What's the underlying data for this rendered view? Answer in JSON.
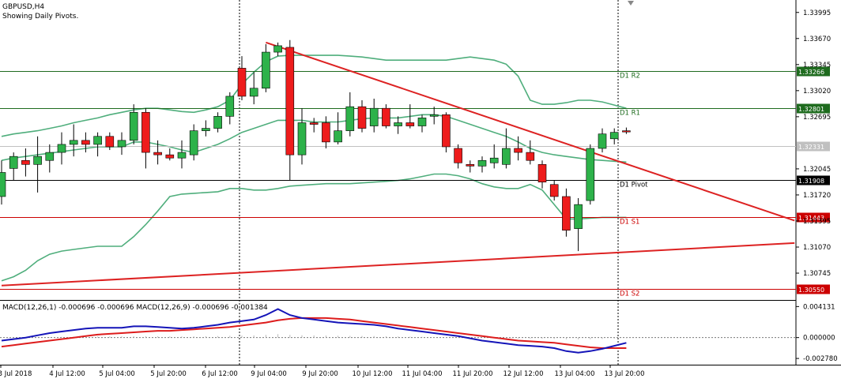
{
  "header": {
    "symbol": "GBPUSD,H4",
    "subtitle": "Showing Daily Pivots."
  },
  "colors": {
    "bull": "#2db24a",
    "bear": "#ee1c1c",
    "bollinger": "#4fae7c",
    "trendline": "#dd2222",
    "pivot_line": "#000000",
    "resistance": "#1e6b1e",
    "support": "#cc0000",
    "macd_main": "#1414b8",
    "macd_signal": "#dd1c1c",
    "axis": "#000000"
  },
  "chart_data": [
    {
      "type": "candlestick",
      "title": "GBPUSD,H4",
      "ylim": [
        1.3045,
        1.3415
      ],
      "y_ticks": [
        "1.33995",
        "1.33670",
        "1.33345",
        "1.33020",
        "1.32695",
        "1.32045",
        "1.31720",
        "1.31395",
        "1.31070",
        "1.30745"
      ],
      "x_labels": [
        "3 Jul 2018",
        "4 Jul 12:00",
        "5 Jul 04:00",
        "5 Jul 20:00",
        "6 Jul 12:00",
        "9 Jul 04:00",
        "9 Jul 20:00",
        "10 Jul 12:00",
        "11 Jul 04:00",
        "11 Jul 20:00",
        "12 Jul 12:00",
        "13 Jul 04:00",
        "13 Jul 20:00"
      ],
      "candles": [
        {
          "o": 1.317,
          "h": 1.3215,
          "l": 1.316,
          "c": 1.32
        },
        {
          "o": 1.3205,
          "h": 1.3225,
          "l": 1.319,
          "c": 1.322
        },
        {
          "o": 1.3215,
          "h": 1.323,
          "l": 1.3195,
          "c": 1.321
        },
        {
          "o": 1.321,
          "h": 1.3245,
          "l": 1.3175,
          "c": 1.322
        },
        {
          "o": 1.3215,
          "h": 1.3235,
          "l": 1.32,
          "c": 1.3225
        },
        {
          "o": 1.3225,
          "h": 1.325,
          "l": 1.321,
          "c": 1.3235
        },
        {
          "o": 1.3235,
          "h": 1.326,
          "l": 1.322,
          "c": 1.324
        },
        {
          "o": 1.324,
          "h": 1.325,
          "l": 1.3225,
          "c": 1.3235
        },
        {
          "o": 1.3235,
          "h": 1.325,
          "l": 1.322,
          "c": 1.3245
        },
        {
          "o": 1.3245,
          "h": 1.325,
          "l": 1.3228,
          "c": 1.3232
        },
        {
          "o": 1.3232,
          "h": 1.325,
          "l": 1.3222,
          "c": 1.324
        },
        {
          "o": 1.324,
          "h": 1.3285,
          "l": 1.3235,
          "c": 1.3275
        },
        {
          "o": 1.3275,
          "h": 1.328,
          "l": 1.3205,
          "c": 1.3225
        },
        {
          "o": 1.3225,
          "h": 1.324,
          "l": 1.321,
          "c": 1.3222
        },
        {
          "o": 1.3222,
          "h": 1.323,
          "l": 1.3215,
          "c": 1.3218
        },
        {
          "o": 1.3218,
          "h": 1.324,
          "l": 1.3205,
          "c": 1.3225
        },
        {
          "o": 1.3222,
          "h": 1.326,
          "l": 1.3215,
          "c": 1.3252
        },
        {
          "o": 1.3252,
          "h": 1.3265,
          "l": 1.3245,
          "c": 1.3255
        },
        {
          "o": 1.3255,
          "h": 1.3275,
          "l": 1.325,
          "c": 1.327
        },
        {
          "o": 1.327,
          "h": 1.33,
          "l": 1.326,
          "c": 1.3295
        },
        {
          "o": 1.333,
          "h": 1.3345,
          "l": 1.329,
          "c": 1.3295
        },
        {
          "o": 1.3295,
          "h": 1.3325,
          "l": 1.3285,
          "c": 1.3305
        },
        {
          "o": 1.3305,
          "h": 1.336,
          "l": 1.33,
          "c": 1.335
        },
        {
          "o": 1.335,
          "h": 1.3362,
          "l": 1.3345,
          "c": 1.3358
        },
        {
          "o": 1.3356,
          "h": 1.3365,
          "l": 1.319,
          "c": 1.3222
        },
        {
          "o": 1.3222,
          "h": 1.328,
          "l": 1.321,
          "c": 1.3262
        },
        {
          "o": 1.3262,
          "h": 1.3268,
          "l": 1.325,
          "c": 1.326
        },
        {
          "o": 1.3262,
          "h": 1.327,
          "l": 1.323,
          "c": 1.3238
        },
        {
          "o": 1.3238,
          "h": 1.3275,
          "l": 1.3235,
          "c": 1.3252
        },
        {
          "o": 1.3252,
          "h": 1.33,
          "l": 1.3245,
          "c": 1.3282
        },
        {
          "o": 1.3282,
          "h": 1.329,
          "l": 1.325,
          "c": 1.3255
        },
        {
          "o": 1.3258,
          "h": 1.3292,
          "l": 1.325,
          "c": 1.328
        },
        {
          "o": 1.328,
          "h": 1.3285,
          "l": 1.3255,
          "c": 1.3258
        },
        {
          "o": 1.3258,
          "h": 1.327,
          "l": 1.3248,
          "c": 1.3262
        },
        {
          "o": 1.3262,
          "h": 1.3285,
          "l": 1.3255,
          "c": 1.3258
        },
        {
          "o": 1.3258,
          "h": 1.3272,
          "l": 1.325,
          "c": 1.3268
        },
        {
          "o": 1.327,
          "h": 1.3282,
          "l": 1.326,
          "c": 1.3272
        },
        {
          "o": 1.3272,
          "h": 1.3275,
          "l": 1.3225,
          "c": 1.3232
        },
        {
          "o": 1.323,
          "h": 1.3235,
          "l": 1.3205,
          "c": 1.3212
        },
        {
          "o": 1.321,
          "h": 1.3215,
          "l": 1.32,
          "c": 1.3208
        },
        {
          "o": 1.3208,
          "h": 1.322,
          "l": 1.32,
          "c": 1.3215
        },
        {
          "o": 1.3212,
          "h": 1.3235,
          "l": 1.3205,
          "c": 1.3218
        },
        {
          "o": 1.321,
          "h": 1.3255,
          "l": 1.3205,
          "c": 1.323
        },
        {
          "o": 1.323,
          "h": 1.3245,
          "l": 1.3215,
          "c": 1.3225
        },
        {
          "o": 1.3225,
          "h": 1.324,
          "l": 1.321,
          "c": 1.3215
        },
        {
          "o": 1.321,
          "h": 1.3215,
          "l": 1.318,
          "c": 1.3188
        },
        {
          "o": 1.3185,
          "h": 1.319,
          "l": 1.3165,
          "c": 1.317
        },
        {
          "o": 1.317,
          "h": 1.318,
          "l": 1.312,
          "c": 1.3128
        },
        {
          "o": 1.313,
          "h": 1.3168,
          "l": 1.3102,
          "c": 1.316
        },
        {
          "o": 1.3165,
          "h": 1.3235,
          "l": 1.316,
          "c": 1.323
        },
        {
          "o": 1.323,
          "h": 1.3255,
          "l": 1.3225,
          "c": 1.3248
        },
        {
          "o": 1.3242,
          "h": 1.3255,
          "l": 1.3235,
          "c": 1.325
        },
        {
          "o": 1.3252,
          "h": 1.3256,
          "l": 1.3248,
          "c": 1.3251
        }
      ],
      "bollinger": {
        "upper": [
          1.3245,
          1.3248,
          1.325,
          1.3252,
          1.3255,
          1.3258,
          1.3262,
          1.3265,
          1.3268,
          1.3272,
          1.3275,
          1.3278,
          1.328,
          1.328,
          1.3278,
          1.3276,
          1.3275,
          1.3278,
          1.3282,
          1.329,
          1.331,
          1.3325,
          1.3338,
          1.3345,
          1.3346,
          1.3346,
          1.3346,
          1.3346,
          1.3346,
          1.3345,
          1.3344,
          1.3342,
          1.334,
          1.334,
          1.334,
          1.334,
          1.334,
          1.334,
          1.3342,
          1.3344,
          1.3342,
          1.334,
          1.3335,
          1.332,
          1.329,
          1.3285,
          1.3285,
          1.3287,
          1.329,
          1.329,
          1.3288,
          1.3284,
          1.328
        ],
        "middle": [
          1.3215,
          1.3218,
          1.322,
          1.3222,
          1.3224,
          1.3226,
          1.3228,
          1.323,
          1.3232,
          1.3232,
          1.3232,
          1.3238,
          1.3238,
          1.3235,
          1.3232,
          1.3228,
          1.3225,
          1.323,
          1.3235,
          1.3242,
          1.325,
          1.3255,
          1.326,
          1.3265,
          1.3265,
          1.3265,
          1.3263,
          1.3263,
          1.3263,
          1.3265,
          1.3267,
          1.3268,
          1.3268,
          1.3268,
          1.327,
          1.3272,
          1.3272,
          1.327,
          1.3265,
          1.326,
          1.3255,
          1.325,
          1.3245,
          1.3238,
          1.323,
          1.3225,
          1.3222,
          1.322,
          1.3218,
          1.3216,
          1.3215,
          1.3214,
          1.3213
        ],
        "lower": [
          1.3065,
          1.307,
          1.3078,
          1.309,
          1.3098,
          1.3102,
          1.3104,
          1.3106,
          1.3108,
          1.3108,
          1.3108,
          1.312,
          1.3135,
          1.3152,
          1.317,
          1.3173,
          1.3174,
          1.3175,
          1.3176,
          1.318,
          1.318,
          1.3178,
          1.3178,
          1.318,
          1.3183,
          1.3184,
          1.3185,
          1.3186,
          1.3186,
          1.3186,
          1.3187,
          1.3188,
          1.3189,
          1.319,
          1.3192,
          1.3195,
          1.3198,
          1.3198,
          1.3196,
          1.3192,
          1.3186,
          1.3182,
          1.318,
          1.318,
          1.3185,
          1.3178,
          1.316,
          1.3142,
          1.3142,
          1.3143,
          1.3144,
          1.3144,
          1.3144
        ]
      },
      "pivot_levels": [
        {
          "name": "D1 R2",
          "value": 1.33266,
          "label": "1.33266",
          "kind": "resistance"
        },
        {
          "name": "D1 R1",
          "value": 1.32801,
          "label": "1.32801",
          "kind": "resistance"
        },
        {
          "name": "D1 Pivot",
          "value": 1.31908,
          "label": "1.31908",
          "kind": "pivot"
        },
        {
          "name": "D1 S1",
          "value": 1.31443,
          "label": "1.31443",
          "kind": "support"
        },
        {
          "name": "D1 S2",
          "value": 1.3055,
          "label": "1.30550",
          "kind": "support"
        }
      ],
      "current_price": "1.32331",
      "trendlines": [
        {
          "name": "descending resistance",
          "from": [
            22,
            1.3362
          ],
          "to": [
            66,
            1.314
          ]
        },
        {
          "name": "ascending support",
          "from": [
            0,
            1.3059
          ],
          "to": [
            66,
            1.3112
          ]
        }
      ]
    },
    {
      "type": "macd",
      "title": "MACD(12,26,1) -0.000696 -0.000696 MACD(12,26,9) -0.000696 -0.001384",
      "ylim": [
        -0.0034,
        0.0048
      ],
      "y_ticks": [
        "0.004131",
        "0.000000",
        "-0.002780"
      ],
      "main": [
        -0.0004,
        -0.0002,
        0.0,
        0.0003,
        0.0006,
        0.0008,
        0.001,
        0.0012,
        0.0013,
        0.0013,
        0.0013,
        0.0015,
        0.0015,
        0.0014,
        0.0013,
        0.0012,
        0.0013,
        0.0015,
        0.0017,
        0.002,
        0.0022,
        0.0024,
        0.003,
        0.0038,
        0.003,
        0.0026,
        0.0024,
        0.0022,
        0.002,
        0.0019,
        0.0018,
        0.0017,
        0.0015,
        0.0012,
        0.001,
        0.0008,
        0.0006,
        0.0004,
        0.0002,
        -0.0001,
        -0.0004,
        -0.0006,
        -0.0008,
        -0.001,
        -0.0011,
        -0.0012,
        -0.0014,
        -0.0018,
        -0.002,
        -0.0018,
        -0.0015,
        -0.0011,
        -0.0007
      ],
      "signal": [
        -0.0012,
        -0.001,
        -0.0008,
        -0.0006,
        -0.0004,
        -0.0002,
        0.0,
        0.0002,
        0.0004,
        0.0005,
        0.0006,
        0.0007,
        0.0008,
        0.0009,
        0.0009,
        0.001,
        0.0011,
        0.0012,
        0.0013,
        0.0014,
        0.0016,
        0.0018,
        0.002,
        0.0023,
        0.0025,
        0.0026,
        0.0026,
        0.0026,
        0.0025,
        0.0024,
        0.0022,
        0.002,
        0.0018,
        0.0016,
        0.0014,
        0.0012,
        0.001,
        0.0008,
        0.0006,
        0.0004,
        0.0002,
        0.0,
        -0.0002,
        -0.0004,
        -0.0005,
        -0.0006,
        -0.0007,
        -0.0009,
        -0.0011,
        -0.0013,
        -0.0014,
        -0.0014,
        -0.0014
      ]
    }
  ]
}
